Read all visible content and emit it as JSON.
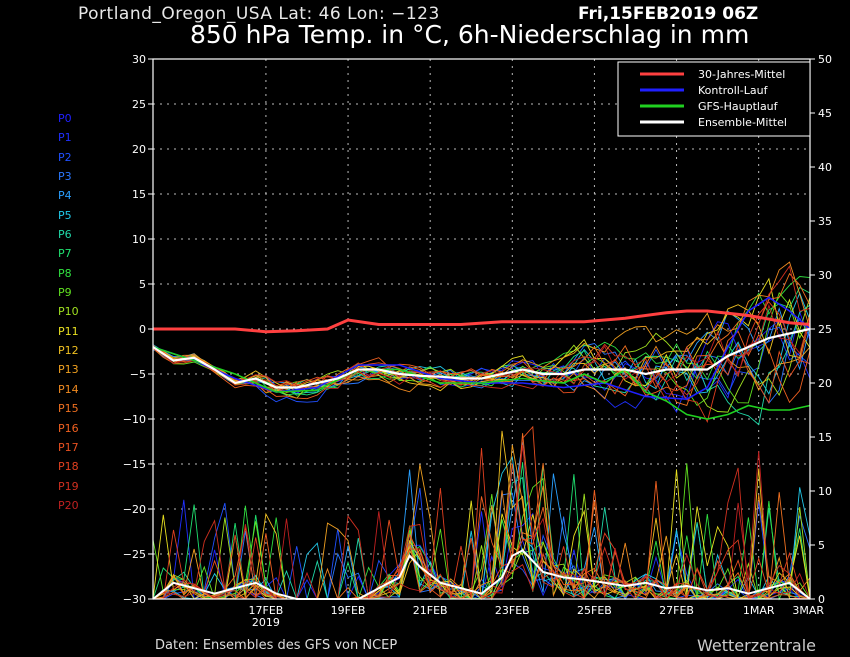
{
  "header": {
    "location": "Portland_Oregon_USA   Lat: 46  Lon: −123",
    "run": "Fri,15FEB2019 06Z",
    "title": "850 hPa Temp. in °C, 6h-Niederschlag in mm"
  },
  "footer": {
    "credit": "Daten: Ensembles des GFS von NCEP",
    "brand": "Wetterzentrale"
  },
  "members": [
    {
      "label": "P0",
      "color": "#2020ff"
    },
    {
      "label": "P1",
      "color": "#2030ff"
    },
    {
      "label": "P2",
      "color": "#2050ff"
    },
    {
      "label": "P3",
      "color": "#2a78ff"
    },
    {
      "label": "P4",
      "color": "#2aa0ff"
    },
    {
      "label": "P5",
      "color": "#20c8e8"
    },
    {
      "label": "P6",
      "color": "#20d8a8"
    },
    {
      "label": "P7",
      "color": "#20e070"
    },
    {
      "label": "P8",
      "color": "#30e040"
    },
    {
      "label": "P9",
      "color": "#60e020"
    },
    {
      "label": "P10",
      "color": "#a0e020"
    },
    {
      "label": "P11",
      "color": "#e8e020"
    },
    {
      "label": "P12",
      "color": "#f0c020"
    },
    {
      "label": "P13",
      "color": "#f0a020"
    },
    {
      "label": "P14",
      "color": "#f08a20"
    },
    {
      "label": "P15",
      "color": "#f07020"
    },
    {
      "label": "P16",
      "color": "#f06020"
    },
    {
      "label": "P17",
      "color": "#e85020"
    },
    {
      "label": "P18",
      "color": "#e04020"
    },
    {
      "label": "P19",
      "color": "#d03020"
    },
    {
      "label": "P20",
      "color": "#c02020"
    }
  ],
  "chart_data": {
    "type": "line",
    "title": "850 hPa Temp. in °C, 6h-Niederschlag in mm",
    "x_range_hours": [
      0,
      384
    ],
    "x_ticks": [
      {
        "hour": 66,
        "label": "17FEB",
        "sub": "2019"
      },
      {
        "hour": 114,
        "label": "19FEB"
      },
      {
        "hour": 162,
        "label": "21FEB"
      },
      {
        "hour": 210,
        "label": "23FEB"
      },
      {
        "hour": 258,
        "label": "25FEB"
      },
      {
        "hour": 306,
        "label": "27FEB"
      },
      {
        "hour": 354,
        "label": "1MAR"
      },
      {
        "hour": 384,
        "label": "3MAR"
      }
    ],
    "y_left": {
      "min": -30,
      "max": 30,
      "step": 5,
      "unit": "°C"
    },
    "y_right": {
      "min": 0,
      "max": 50,
      "step": 5,
      "unit": "mm"
    },
    "legend": {
      "position": "top-right",
      "entries": [
        {
          "name": "30-Jahres-Mittel",
          "color": "#ff4040"
        },
        {
          "name": "Kontroll-Lauf",
          "color": "#2020ff"
        },
        {
          "name": "GFS-Hauptlauf",
          "color": "#20d020"
        },
        {
          "name": "Ensemble-Mittel",
          "color": "#ffffff"
        }
      ]
    },
    "temp_series": {
      "30-Jahres-Mittel": {
        "x": [
          0,
          24,
          48,
          66,
          84,
          102,
          114,
          132,
          156,
          180,
          204,
          228,
          252,
          276,
          300,
          312,
          324,
          348,
          372,
          384
        ],
        "y": [
          0,
          0,
          0,
          -0.3,
          -0.2,
          0,
          1,
          0.5,
          0.5,
          0.5,
          0.8,
          0.8,
          0.8,
          1.2,
          1.8,
          2.0,
          2.0,
          1.5,
          0.7,
          0.5
        ]
      },
      "Ensemble-Mittel": {
        "x": [
          0,
          12,
          24,
          36,
          48,
          60,
          72,
          84,
          96,
          108,
          120,
          132,
          144,
          156,
          168,
          180,
          192,
          204,
          216,
          228,
          240,
          252,
          264,
          276,
          288,
          300,
          312,
          324,
          336,
          348,
          360,
          372,
          384
        ],
        "y": [
          -2,
          -3.5,
          -3.2,
          -4.5,
          -6,
          -5.5,
          -6.5,
          -6.5,
          -6,
          -5.5,
          -4.5,
          -4.5,
          -5,
          -5.2,
          -5.3,
          -5.5,
          -5.5,
          -5,
          -4.5,
          -5,
          -5,
          -4.5,
          -4.5,
          -4.5,
          -5,
          -4.5,
          -4.5,
          -4.5,
          -3,
          -2,
          -1,
          -0.5,
          0
        ]
      },
      "Kontroll-Lauf": {
        "x": [
          0,
          24,
          48,
          72,
          96,
          120,
          144,
          168,
          192,
          216,
          240,
          264,
          288,
          312,
          324,
          336,
          348,
          360,
          372,
          384
        ],
        "y": [
          -2,
          -3.5,
          -5.5,
          -7,
          -6.5,
          -4,
          -4,
          -5.5,
          -6,
          -6,
          -6.5,
          -6,
          -7.5,
          -7.8,
          -6.5,
          -2,
          2,
          3.5,
          2,
          0
        ]
      },
      "GFS-Hauptlauf": {
        "x": [
          0,
          24,
          48,
          72,
          96,
          120,
          144,
          168,
          192,
          216,
          240,
          252,
          264,
          276,
          288,
          300,
          312,
          324,
          336,
          348,
          360,
          372,
          384
        ],
        "y": [
          -2,
          -3.5,
          -5,
          -7,
          -6.8,
          -4.5,
          -4.5,
          -6,
          -6,
          -5.5,
          -6,
          -5,
          -6,
          -4.5,
          -7,
          -8,
          -9.5,
          -10,
          -9.5,
          -8.5,
          -9,
          -9,
          -8.5
        ]
      }
    },
    "precip_series": {
      "Ensemble-Mittel": {
        "x": [
          0,
          12,
          24,
          36,
          48,
          60,
          72,
          84,
          96,
          108,
          120,
          132,
          144,
          150,
          156,
          168,
          180,
          192,
          204,
          210,
          216,
          228,
          240,
          252,
          264,
          276,
          288,
          300,
          312,
          324,
          336,
          348,
          360,
          372,
          384
        ],
        "y": [
          0,
          1.5,
          1,
          0.5,
          1,
          1.5,
          0.5,
          0,
          0,
          0,
          0,
          1,
          2,
          4,
          3,
          1.5,
          1,
          0.5,
          2,
          4,
          4.5,
          2.5,
          2,
          1.8,
          1.5,
          1.2,
          1.5,
          1,
          1.2,
          0.8,
          1,
          0.5,
          1,
          1.5,
          0
        ]
      }
    }
  }
}
